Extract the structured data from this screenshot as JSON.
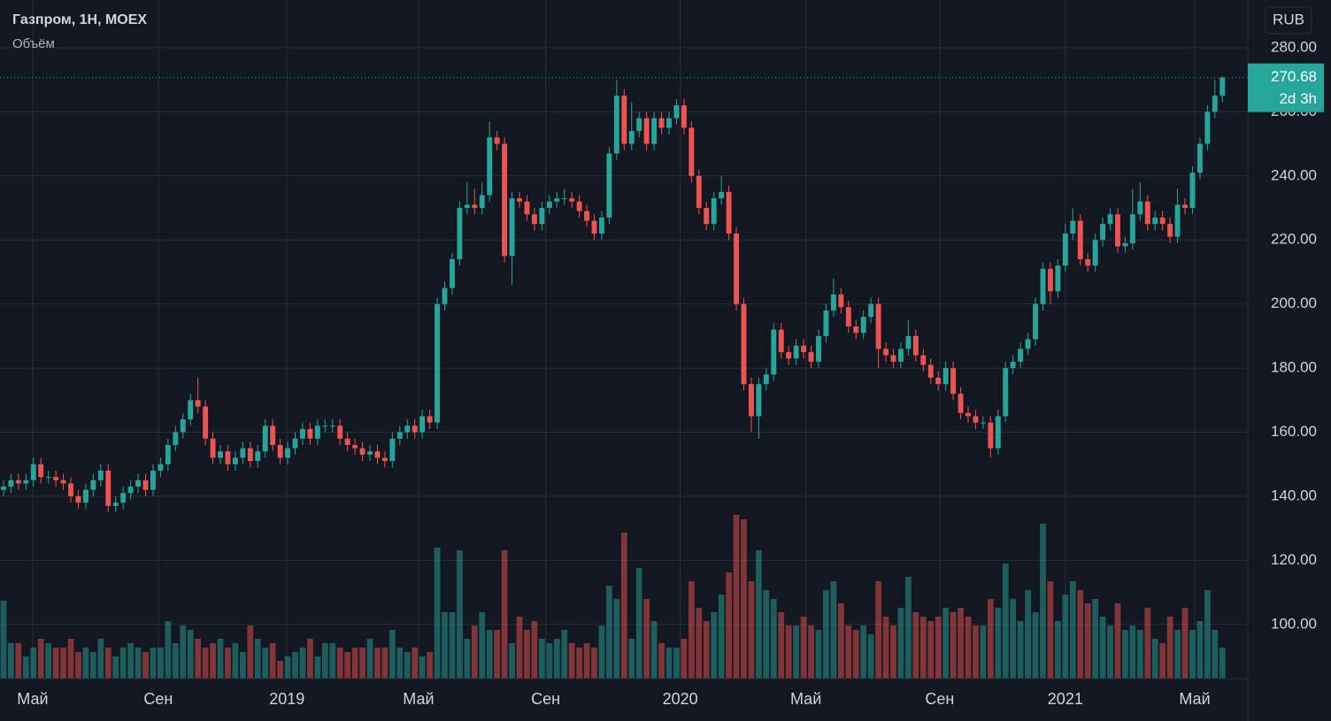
{
  "chart_data": {
    "type": "candlestick",
    "title": "Газпром, 1Н, MOEX",
    "subtitle": "Объём",
    "currency": "RUB",
    "countdown": "2d 3h",
    "up_color": "#26a69a",
    "down_color": "#ef5350",
    "grid": true,
    "xlim": [
      -0.47,
      166.4
    ],
    "xticks": [
      {
        "value": 3.9,
        "label": "Май"
      },
      {
        "value": 20.7,
        "label": "Сен"
      },
      {
        "value": 37.9,
        "label": "2019"
      },
      {
        "value": 55.5,
        "label": "Май"
      },
      {
        "value": 72.5,
        "label": "Сен"
      },
      {
        "value": 90.5,
        "label": "2020"
      },
      {
        "value": 107.3,
        "label": "Май"
      },
      {
        "value": 125.2,
        "label": "Сен"
      },
      {
        "value": 142,
        "label": "2021"
      },
      {
        "value": 159.3,
        "label": "Май"
      }
    ],
    "ylim": [
      83.1,
      294.9
    ],
    "yticks": [
      {
        "value": 100,
        "label": "100.00"
      },
      {
        "value": 120,
        "label": "120.00"
      },
      {
        "value": 140,
        "label": "140.00"
      },
      {
        "value": 160,
        "label": "160.00"
      },
      {
        "value": 180,
        "label": "180.00"
      },
      {
        "value": 200,
        "label": "200.00"
      },
      {
        "value": 220,
        "label": "220.00"
      },
      {
        "value": 240,
        "label": "240.00"
      },
      {
        "value": 260,
        "label": "260.00"
      },
      {
        "value": 280,
        "label": "280.00"
      }
    ],
    "open": [
      142,
      143,
      145,
      144,
      145,
      150,
      146,
      146,
      145,
      144,
      140,
      138,
      142,
      145,
      148,
      137,
      138,
      141,
      143,
      145,
      142,
      148,
      150,
      156,
      160,
      164,
      170,
      168,
      158,
      152,
      154,
      150,
      152,
      155,
      151,
      154,
      162,
      156,
      152,
      155,
      158,
      161,
      158,
      162,
      162,
      162,
      158,
      156,
      155,
      153,
      154,
      152,
      151,
      158,
      160,
      162,
      160,
      165,
      163,
      200,
      205,
      214,
      230,
      231,
      230,
      234,
      252,
      250,
      215,
      233,
      232,
      228,
      225,
      230,
      232,
      233,
      233,
      232,
      229,
      226,
      222,
      227,
      247,
      265,
      250,
      254,
      258,
      250,
      258,
      255,
      258,
      262,
      255,
      240,
      230,
      225,
      233,
      235,
      222,
      200,
      175,
      165,
      175,
      178,
      192,
      185,
      183,
      187,
      185,
      182,
      190,
      198,
      203,
      199,
      193,
      191,
      196,
      200,
      186,
      184,
      182,
      186,
      190,
      184,
      181,
      177,
      175,
      180,
      172,
      166,
      165,
      163,
      163,
      155,
      165,
      180,
      182,
      186,
      189,
      200,
      211,
      204,
      212,
      222,
      226,
      214,
      212,
      220,
      225,
      228,
      218,
      219,
      228,
      232,
      225,
      227,
      225,
      221,
      231,
      230,
      241,
      250,
      260,
      265
    ],
    "high": [
      145,
      147,
      147,
      147,
      152,
      152,
      148,
      148,
      147,
      146,
      142,
      144,
      147,
      150,
      150,
      140,
      143,
      145,
      147,
      147,
      150,
      152,
      158,
      162,
      166,
      172,
      177,
      170,
      160,
      156,
      156,
      154,
      157,
      157,
      156,
      164,
      164,
      158,
      157,
      160,
      163,
      163,
      164,
      164,
      164,
      164,
      160,
      158,
      157,
      156,
      156,
      154,
      160,
      162,
      164,
      164,
      167,
      167,
      202,
      207,
      216,
      232,
      238,
      236,
      238,
      257,
      254,
      252,
      235,
      235,
      234,
      230,
      232,
      234,
      235,
      236,
      235,
      234,
      231,
      228,
      229,
      249,
      270,
      267,
      263,
      260,
      260,
      260,
      260,
      260,
      264,
      264,
      257,
      242,
      232,
      235,
      240,
      237,
      224,
      202,
      177,
      177,
      180,
      194,
      194,
      187,
      189,
      189,
      187,
      192,
      200,
      208,
      205,
      201,
      195,
      198,
      202,
      202,
      188,
      186,
      188,
      195,
      192,
      186,
      183,
      179,
      182,
      182,
      174,
      168,
      167,
      165,
      165,
      167,
      182,
      184,
      188,
      191,
      202,
      213,
      213,
      214,
      225,
      230,
      228,
      216,
      222,
      227,
      230,
      230,
      221,
      236,
      238,
      234,
      229,
      229,
      227,
      236,
      233,
      243,
      252,
      262,
      270,
      271
    ],
    "low": [
      140,
      141,
      142,
      142,
      143,
      144,
      144,
      143,
      142,
      138,
      136,
      136,
      140,
      143,
      135,
      135,
      136,
      139,
      141,
      140,
      140,
      146,
      148,
      154,
      158,
      162,
      166,
      156,
      150,
      150,
      148,
      148,
      150,
      149,
      149,
      152,
      154,
      150,
      150,
      153,
      156,
      156,
      156,
      160,
      160,
      156,
      154,
      153,
      151,
      151,
      150,
      149,
      149,
      156,
      158,
      158,
      158,
      161,
      161,
      198,
      203,
      212,
      228,
      228,
      228,
      232,
      248,
      213,
      206,
      230,
      226,
      223,
      223,
      228,
      230,
      231,
      230,
      227,
      224,
      220,
      220,
      225,
      245,
      248,
      248,
      252,
      248,
      248,
      253,
      253,
      256,
      253,
      238,
      228,
      223,
      223,
      231,
      220,
      198,
      173,
      160,
      158,
      173,
      176,
      183,
      181,
      181,
      183,
      180,
      180,
      188,
      196,
      197,
      191,
      189,
      189,
      194,
      180,
      182,
      180,
      180,
      184,
      182,
      179,
      175,
      173,
      173,
      170,
      164,
      163,
      161,
      161,
      152,
      153,
      163,
      178,
      180,
      184,
      187,
      198,
      200,
      202,
      210,
      220,
      212,
      210,
      210,
      218,
      223,
      216,
      216,
      217,
      226,
      223,
      223,
      223,
      219,
      219,
      228,
      228,
      239,
      248,
      258,
      263
    ],
    "close": [
      143,
      145,
      144,
      145,
      150,
      146,
      146,
      145,
      144,
      140,
      138,
      142,
      145,
      148,
      137,
      138,
      141,
      143,
      145,
      142,
      148,
      150,
      156,
      160,
      164,
      170,
      168,
      158,
      152,
      154,
      150,
      152,
      155,
      151,
      154,
      162,
      156,
      152,
      155,
      158,
      161,
      158,
      162,
      162,
      162,
      158,
      156,
      155,
      153,
      154,
      152,
      151,
      158,
      160,
      162,
      160,
      165,
      163,
      200,
      205,
      214,
      230,
      231,
      230,
      234,
      252,
      250,
      215,
      233,
      232,
      228,
      225,
      230,
      232,
      233,
      233,
      232,
      229,
      226,
      222,
      227,
      247,
      265,
      250,
      254,
      258,
      250,
      258,
      255,
      258,
      262,
      255,
      240,
      230,
      225,
      233,
      235,
      222,
      200,
      175,
      165,
      175,
      178,
      192,
      185,
      183,
      187,
      185,
      182,
      190,
      198,
      203,
      199,
      193,
      191,
      196,
      200,
      186,
      184,
      182,
      186,
      190,
      184,
      181,
      177,
      175,
      180,
      172,
      166,
      165,
      163,
      163,
      155,
      165,
      180,
      182,
      186,
      189,
      200,
      211,
      204,
      212,
      222,
      226,
      214,
      212,
      220,
      225,
      228,
      218,
      219,
      228,
      232,
      225,
      227,
      225,
      221,
      231,
      230,
      241,
      250,
      260,
      265,
      270.68
    ],
    "volume": [
      88,
      40,
      40,
      25,
      35,
      45,
      40,
      35,
      35,
      45,
      30,
      35,
      30,
      45,
      35,
      25,
      35,
      40,
      35,
      30,
      35,
      35,
      65,
      40,
      60,
      55,
      45,
      35,
      40,
      45,
      35,
      40,
      30,
      60,
      45,
      35,
      40,
      20,
      25,
      30,
      35,
      45,
      25,
      40,
      40,
      35,
      30,
      35,
      35,
      45,
      35,
      35,
      55,
      35,
      30,
      35,
      25,
      30,
      148,
      75,
      75,
      145,
      45,
      60,
      75,
      55,
      55,
      145,
      40,
      70,
      55,
      65,
      45,
      40,
      45,
      55,
      40,
      35,
      40,
      35,
      60,
      105,
      90,
      165,
      45,
      125,
      90,
      65,
      40,
      35,
      35,
      45,
      110,
      80,
      65,
      75,
      95,
      120,
      185,
      180,
      110,
      145,
      100,
      90,
      75,
      60,
      60,
      70,
      60,
      55,
      100,
      110,
      85,
      60,
      55,
      60,
      50,
      110,
      70,
      60,
      80,
      115,
      75,
      70,
      65,
      70,
      80,
      75,
      80,
      70,
      60,
      60,
      90,
      80,
      130,
      90,
      65,
      100,
      75,
      175,
      110,
      65,
      95,
      110,
      100,
      85,
      90,
      70,
      60,
      85,
      55,
      60,
      55,
      80,
      45,
      40,
      70,
      55,
      80,
      55,
      65,
      100,
      55,
      35
    ]
  }
}
